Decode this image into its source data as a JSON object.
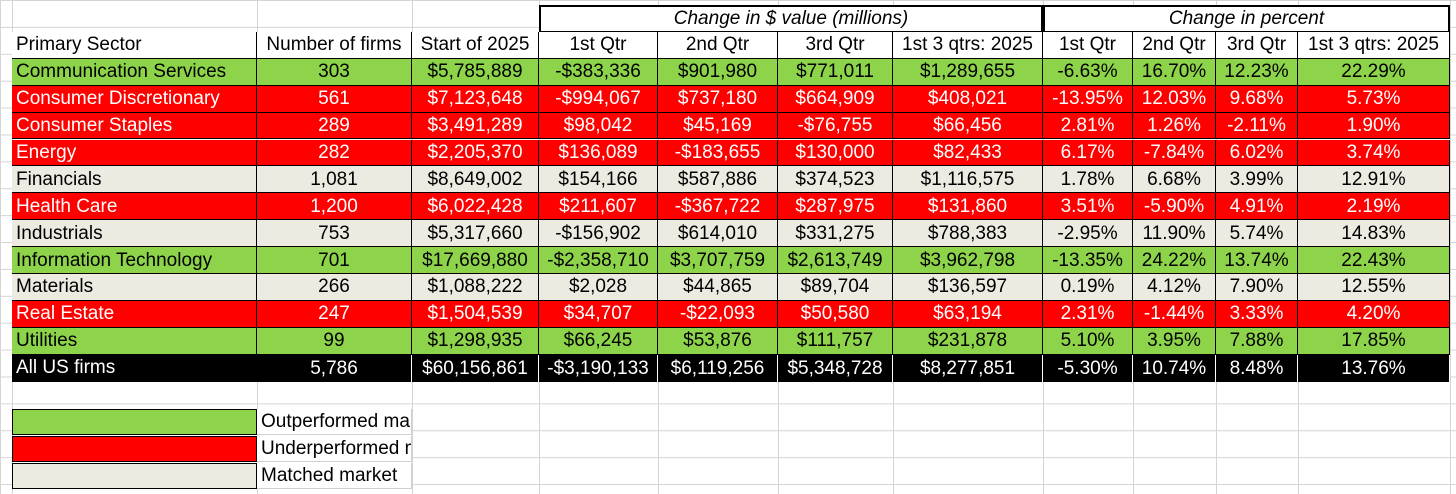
{
  "header": {
    "group_dollar": "Change in $ value (millions)",
    "group_percent": "Change in percent",
    "columns": [
      "Primary Sector",
      "Number of firms",
      "Start of 2025",
      "1st Qtr",
      "2nd Qtr",
      "3rd Qtr",
      "1st 3 qtrs: 2025",
      "1st Qtr",
      "2nd Qtr",
      "3rd Qtr",
      "1st 3 qtrs: 2025"
    ]
  },
  "rows": [
    {
      "sector": "Communication Services",
      "status": "outperformed",
      "cells": [
        "303",
        "$5,785,889",
        "-$383,336",
        "$901,980",
        "$771,011",
        "$1,289,655",
        "-6.63%",
        "16.70%",
        "12.23%",
        "22.29%"
      ]
    },
    {
      "sector": "Consumer Discretionary",
      "status": "underperformed",
      "cells": [
        "561",
        "$7,123,648",
        "-$994,067",
        "$737,180",
        "$664,909",
        "$408,021",
        "-13.95%",
        "12.03%",
        "9.68%",
        "5.73%"
      ]
    },
    {
      "sector": "Consumer Staples",
      "status": "underperformed",
      "cells": [
        "289",
        "$3,491,289",
        "$98,042",
        "$45,169",
        "-$76,755",
        "$66,456",
        "2.81%",
        "1.26%",
        "-2.11%",
        "1.90%"
      ]
    },
    {
      "sector": "Energy",
      "status": "underperformed",
      "cells": [
        "282",
        "$2,205,370",
        "$136,089",
        "-$183,655",
        "$130,000",
        "$82,433",
        "6.17%",
        "-7.84%",
        "6.02%",
        "3.74%"
      ]
    },
    {
      "sector": "Financials",
      "status": "matched",
      "cells": [
        "1,081",
        "$8,649,002",
        "$154,166",
        "$587,886",
        "$374,523",
        "$1,116,575",
        "1.78%",
        "6.68%",
        "3.99%",
        "12.91%"
      ]
    },
    {
      "sector": "Health Care",
      "status": "underperformed",
      "cells": [
        "1,200",
        "$6,022,428",
        "$211,607",
        "-$367,722",
        "$287,975",
        "$131,860",
        "3.51%",
        "-5.90%",
        "4.91%",
        "2.19%"
      ]
    },
    {
      "sector": "Industrials",
      "status": "matched",
      "cells": [
        "753",
        "$5,317,660",
        "-$156,902",
        "$614,010",
        "$331,275",
        "$788,383",
        "-2.95%",
        "11.90%",
        "5.74%",
        "14.83%"
      ]
    },
    {
      "sector": "Information Technology",
      "status": "outperformed",
      "cells": [
        "701",
        "$17,669,880",
        "-$2,358,710",
        "$3,707,759",
        "$2,613,749",
        "$3,962,798",
        "-13.35%",
        "24.22%",
        "13.74%",
        "22.43%"
      ]
    },
    {
      "sector": "Materials",
      "status": "matched",
      "cells": [
        "266",
        "$1,088,222",
        "$2,028",
        "$44,865",
        "$89,704",
        "$136,597",
        "0.19%",
        "4.12%",
        "7.90%",
        "12.55%"
      ]
    },
    {
      "sector": "Real Estate",
      "status": "underperformed",
      "cells": [
        "247",
        "$1,504,539",
        "$34,707",
        "-$22,093",
        "$50,580",
        "$63,194",
        "2.31%",
        "-1.44%",
        "3.33%",
        "4.20%"
      ]
    },
    {
      "sector": "Utilities",
      "status": "outperformed",
      "cells": [
        "99",
        "$1,298,935",
        "$66,245",
        "$53,876",
        "$111,757",
        "$231,878",
        "5.10%",
        "3.95%",
        "7.88%",
        "17.85%"
      ]
    }
  ],
  "total": {
    "sector": "All US firms",
    "cells": [
      "5,786",
      "$60,156,861",
      "-$3,190,133",
      "$6,119,256",
      "$5,348,728",
      "$8,277,851",
      "-5.30%",
      "10.74%",
      "8.48%",
      "13.76%"
    ]
  },
  "legend": [
    {
      "status": "outperformed",
      "label": "Outperformed market"
    },
    {
      "status": "underperformed",
      "label": "Underperformed market"
    },
    {
      "status": "matched",
      "label": "Matched market"
    }
  ],
  "colors": {
    "outperformed": "#8dd44b",
    "underperformed": "#ff0000",
    "matched": "#edeae2",
    "total": "#000000"
  }
}
